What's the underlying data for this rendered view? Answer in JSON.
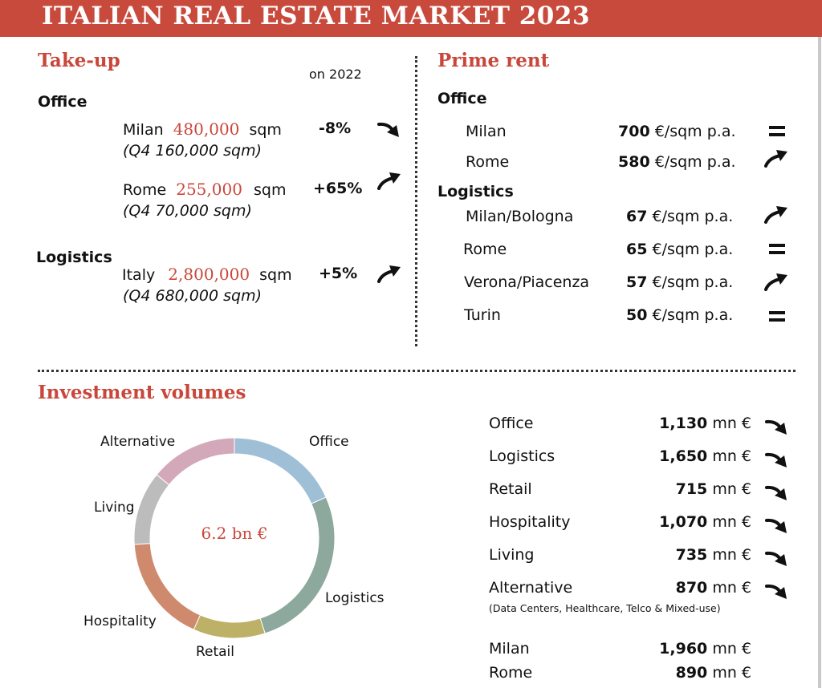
{
  "header": {
    "title": "ITALIAN REAL ESTATE MARKET 2023"
  },
  "takeup": {
    "title": "Take-up",
    "comparison_label": "on 2022",
    "office_label": "Office",
    "milan": {
      "city": "Milan",
      "value": "480,000",
      "unit": "sqm",
      "change": "-8%",
      "q4": "(Q4 160,000 sqm)",
      "trend": "down"
    },
    "rome": {
      "city": "Rome",
      "value": "255,000",
      "unit": "sqm",
      "change": "+65%",
      "q4": "(Q4 70,000 sqm)",
      "trend": "up"
    },
    "logistics_label": "Logistics",
    "italy": {
      "city": "Italy",
      "value": "2,800,000",
      "unit": "sqm",
      "change": "+5%",
      "q4": "(Q4 680,000 sqm)",
      "trend": "up"
    }
  },
  "prime_rent": {
    "title": "Prime rent",
    "office_label": "Office",
    "logistics_label": "Logistics",
    "office": [
      {
        "city": "Milan",
        "value": "700",
        "unit": "€/sqm p.a.",
        "trend": "stable"
      },
      {
        "city": "Rome",
        "value": "580",
        "unit": "€/sqm p.a.",
        "trend": "up"
      }
    ],
    "logistics": [
      {
        "city": "Milan/Bologna",
        "value": "67",
        "unit": "€/sqm p.a.",
        "trend": "up"
      },
      {
        "city": "Rome",
        "value": "65",
        "unit": "€/sqm p.a.",
        "trend": "stable"
      },
      {
        "city": "Verona/Piacenza",
        "value": "57",
        "unit": "€/sqm p.a.",
        "trend": "up"
      },
      {
        "city": "Turin",
        "value": "50",
        "unit": "€/sqm p.a.",
        "trend": "stable"
      }
    ]
  },
  "investment": {
    "title": "Investment volumes",
    "total_label": "6.2 bn €",
    "sectors": [
      {
        "name": "Office",
        "value": "1,130",
        "unit": "mn €",
        "trend": "down"
      },
      {
        "name": "Logistics",
        "value": "1,650",
        "unit": "mn €",
        "trend": "down"
      },
      {
        "name": "Retail",
        "value": "715",
        "unit": "mn €",
        "trend": "down"
      },
      {
        "name": "Hospitality",
        "value": "1,070",
        "unit": "mn €",
        "trend": "down"
      },
      {
        "name": "Living",
        "value": "735",
        "unit": "mn €",
        "trend": "down"
      },
      {
        "name": "Alternative",
        "value": "870",
        "unit": "mn €",
        "trend": "down"
      }
    ],
    "alternative_note": "(Data Centers, Healthcare, Telco & Mixed-use)",
    "cities": [
      {
        "name": "Milan",
        "value": "1,960",
        "unit": "mn €"
      },
      {
        "name": "Rome",
        "value": "890",
        "unit": "mn €"
      }
    ]
  },
  "chart_data": {
    "type": "pie",
    "variant": "donut",
    "center_label": "6.2 bn €",
    "categories": [
      "Office",
      "Logistics",
      "Retail",
      "Hospitality",
      "Living",
      "Alternative"
    ],
    "values": [
      1130,
      1650,
      715,
      1070,
      735,
      870
    ],
    "unit": "mn €",
    "colors": [
      "#9fbfd6",
      "#8da89c",
      "#bdb067",
      "#cf8a6e",
      "#bcbcbc",
      "#d3a9b9"
    ]
  }
}
